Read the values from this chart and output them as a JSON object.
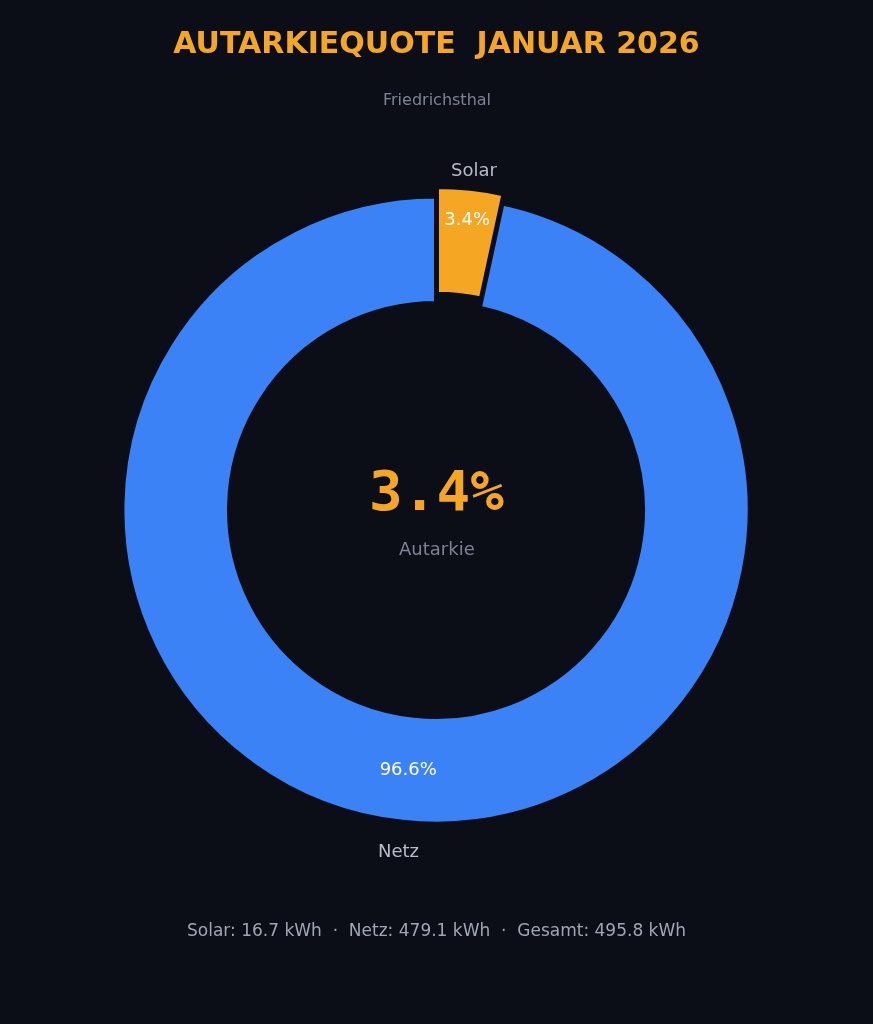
{
  "chart_data": {
    "type": "donut",
    "title": "AUTARKIEQUOTE  JANUAR 2026",
    "subtitle": "Friedrichsthal",
    "categories": [
      "Solar",
      "Netz"
    ],
    "values": [
      3.4,
      96.6
    ],
    "colors": [
      "#f5a623",
      "#3b82f6"
    ],
    "value_labels": [
      "3.4%",
      "96.6%"
    ],
    "annotations": [
      "3.4%",
      "Autarkie",
      "Solar: 16.7 kWh  ·  Netz: 479.1 kWh  ·  Gesamt: 495.8 kWh"
    ],
    "legend": false
  }
}
